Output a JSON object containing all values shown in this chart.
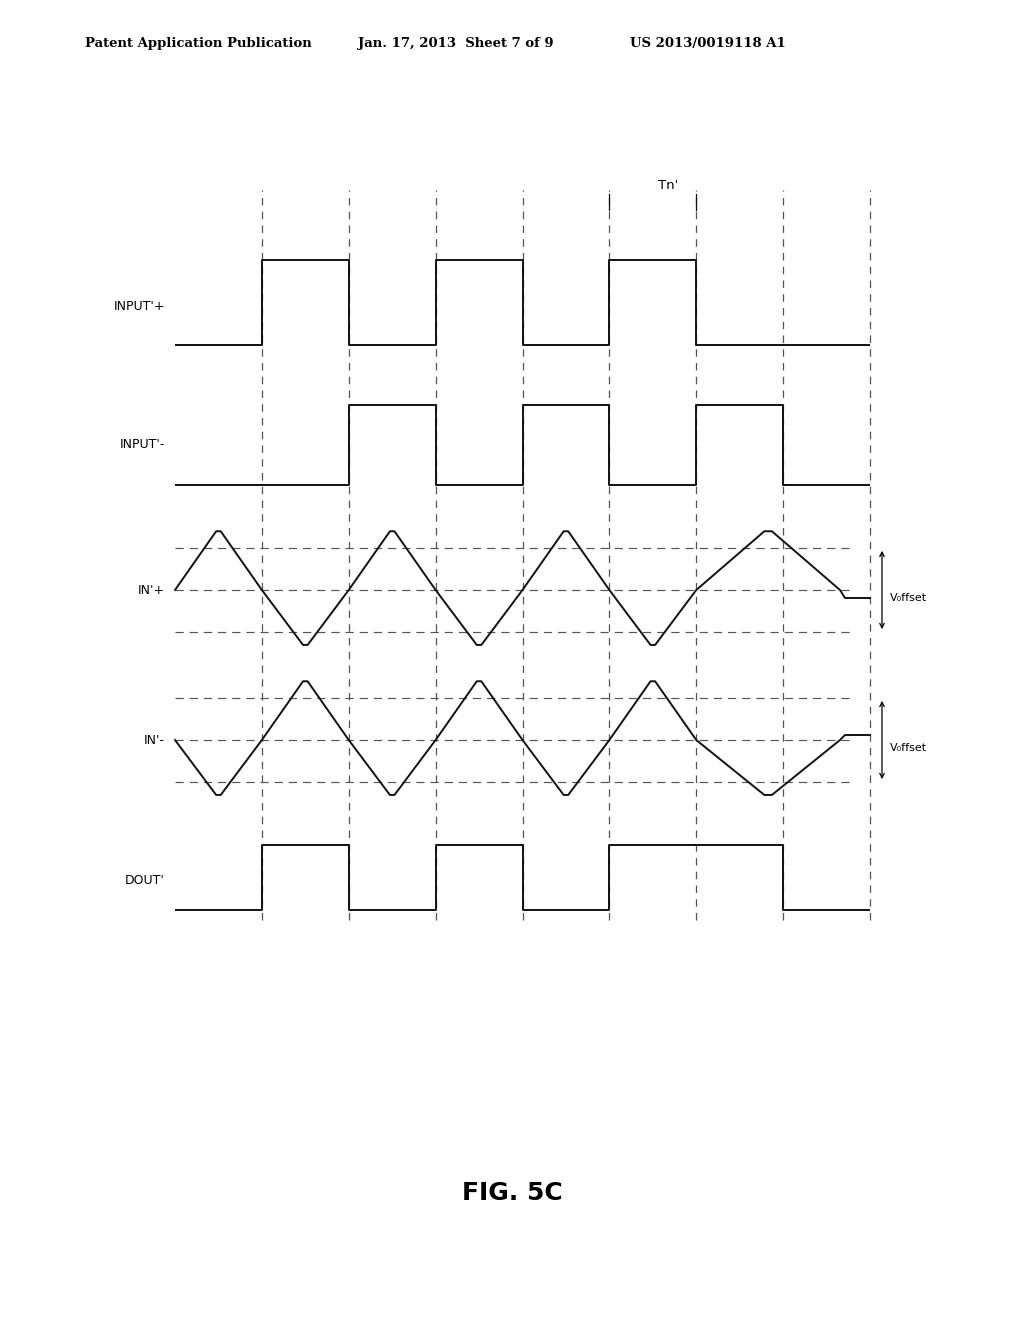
{
  "bg_color": "#ffffff",
  "header_left": "Patent Application Publication",
  "header_mid": "Jan. 17, 2013  Sheet 7 of 9",
  "header_right": "US 2013/0019118 A1",
  "fig_label": "FIG. 5C",
  "signal_color": "#111111",
  "dash_color": "#555555",
  "lw": 1.4,
  "dash_lw": 0.9,
  "voffset_label": "V₀ffset"
}
